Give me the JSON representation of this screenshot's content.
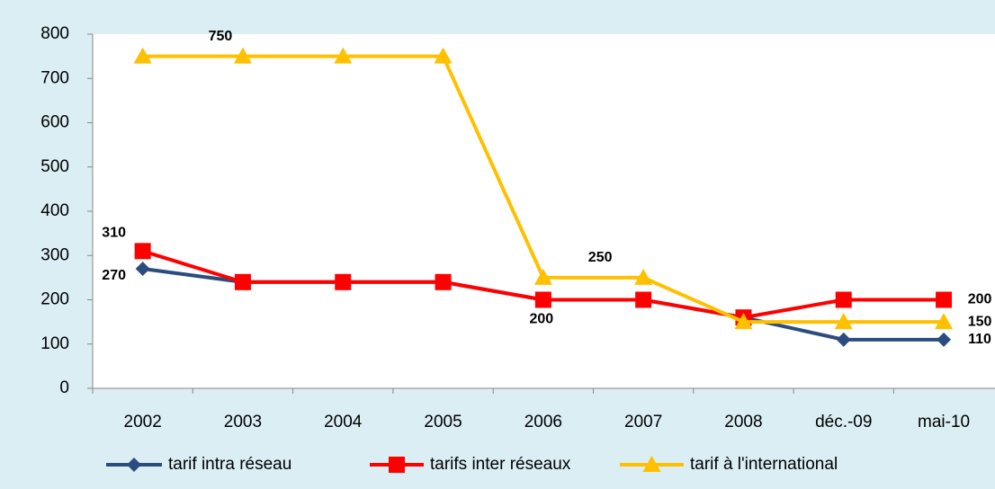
{
  "chart_data": {
    "type": "line",
    "categories": [
      "2002",
      "2003",
      "2004",
      "2005",
      "2006",
      "2007",
      "2008",
      "déc.-09",
      "mai-10"
    ],
    "series": [
      {
        "name": "tarif intra réseau",
        "color": "#2b4c7e",
        "marker": "diamond",
        "values": [
          270,
          240,
          240,
          240,
          200,
          200,
          160,
          110,
          110
        ],
        "data_labels": [
          0,
          4,
          8
        ]
      },
      {
        "name": "tarifs inter réseaux",
        "color": "#ff0000",
        "marker": "square",
        "values": [
          310,
          240,
          240,
          240,
          200,
          200,
          160,
          200,
          200
        ],
        "data_labels": [
          0,
          8
        ]
      },
      {
        "name": "tarif à l'international",
        "color": "#ffc000",
        "marker": "triangle",
        "values": [
          750,
          750,
          750,
          750,
          250,
          250,
          150,
          150,
          150
        ],
        "data_labels": [
          1,
          5,
          8
        ]
      }
    ],
    "ylim": [
      0,
      800
    ],
    "yticks": [
      0,
      100,
      200,
      300,
      400,
      500,
      600,
      700,
      800
    ],
    "grid": false,
    "legend": "bottom"
  }
}
